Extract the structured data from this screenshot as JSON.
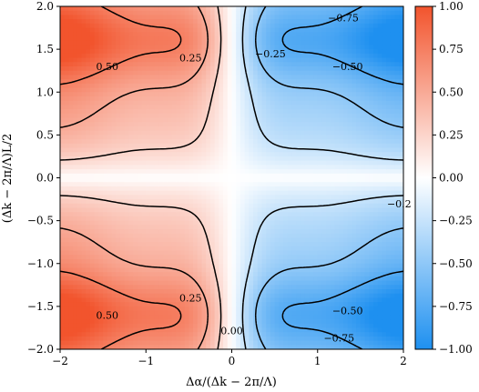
{
  "chart_data": {
    "type": "heatmap",
    "xlabel": "Δα/(Δk − 2π/Λ)",
    "ylabel": "(Δk − 2π/Λ)L/2",
    "xlim": [
      -2,
      2
    ],
    "ylim": [
      -2,
      2
    ],
    "x_ticks": [
      "−2",
      "−1",
      "0",
      "1",
      "2"
    ],
    "y_ticks": [
      "2.0",
      "1.5",
      "1.0",
      "0.5",
      "0.0",
      "−0.5",
      "−1.0",
      "−1.5",
      "−2.0"
    ],
    "colorbar": {
      "range": [
        -1,
        1
      ],
      "ticks": [
        "1.00",
        "0.75",
        "0.50",
        "0.25",
        "0.00",
        "−0.25",
        "−0.50",
        "−0.75",
        "−1.00"
      ],
      "high_color": "#f2542d",
      "mid_color": "#ffffff",
      "low_color": "#1e90f0"
    },
    "contour_levels": [
      -0.75,
      -0.5,
      -0.25,
      0.0,
      0.25,
      0.5,
      0.75
    ],
    "contour_labels": [
      {
        "text": "0.50",
        "x": -1.45,
        "y": 1.3
      },
      {
        "text": "0.25",
        "x": -0.48,
        "y": 1.4
      },
      {
        "text": "0.50",
        "x": -1.45,
        "y": -1.6
      },
      {
        "text": "0.25",
        "x": -0.48,
        "y": -1.4
      },
      {
        "text": "0.00",
        "x": 0.0,
        "y": -1.78
      },
      {
        "text": "−0.25",
        "x": 0.45,
        "y": 1.45
      },
      {
        "text": "−0.50",
        "x": 1.35,
        "y": 1.3
      },
      {
        "text": "−0.75",
        "x": 1.3,
        "y": 1.87
      },
      {
        "text": "−0.50",
        "x": 1.35,
        "y": -1.55
      },
      {
        "text": "−0.75",
        "x": 1.25,
        "y": -1.87
      },
      {
        "text": "−0.2",
        "x": 1.95,
        "y": -0.3
      }
    ]
  }
}
